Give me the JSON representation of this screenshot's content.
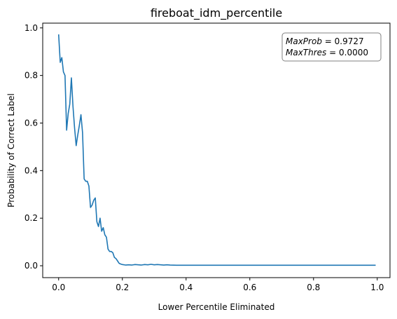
{
  "chart_data": {
    "type": "line",
    "title": "fireboat_idm_percentile",
    "xlabel": "Lower Percentile Eliminated",
    "ylabel": "Probability of Correct Label",
    "xlim": [
      -0.05,
      1.04
    ],
    "ylim": [
      -0.05,
      1.02
    ],
    "xticks": [
      0.0,
      0.2,
      0.4,
      0.6,
      0.8,
      1.0
    ],
    "xtick_labels": [
      "0.0",
      "0.2",
      "0.4",
      "0.6",
      "0.8",
      "1.0"
    ],
    "yticks": [
      0.0,
      0.2,
      0.4,
      0.6,
      0.8,
      1.0
    ],
    "ytick_labels": [
      "0.0",
      "0.2",
      "0.4",
      "0.6",
      "0.8",
      "1.0"
    ],
    "grid": false,
    "line_color": "#1f77b4",
    "annotation": {
      "line1_label": "MaxProb",
      "line1_eq": " = 0.9727",
      "line2_label": "MaxThres",
      "line2_eq": " = 0.0000"
    },
    "series": [
      {
        "x": [
          0.0,
          0.005,
          0.01,
          0.015,
          0.02,
          0.025,
          0.03,
          0.035,
          0.04,
          0.045,
          0.05,
          0.055,
          0.06,
          0.065,
          0.07,
          0.075,
          0.08,
          0.085,
          0.09,
          0.095,
          0.1,
          0.105,
          0.11,
          0.115,
          0.12,
          0.125,
          0.13,
          0.135,
          0.14,
          0.145,
          0.15,
          0.155,
          0.16,
          0.165,
          0.17,
          0.175,
          0.18,
          0.185,
          0.19,
          0.195,
          0.2,
          0.21,
          0.22,
          0.23,
          0.24,
          0.25,
          0.26,
          0.27,
          0.28,
          0.29,
          0.3,
          0.31,
          0.32,
          0.33,
          0.34,
          0.35,
          0.37,
          0.39,
          0.4,
          0.45,
          0.5,
          0.55,
          0.6,
          0.65,
          0.7,
          0.75,
          0.8,
          0.85,
          0.9,
          0.95,
          0.995
        ],
        "y": [
          0.9727,
          0.855,
          0.875,
          0.815,
          0.8,
          0.57,
          0.64,
          0.68,
          0.79,
          0.67,
          0.58,
          0.505,
          0.55,
          0.59,
          0.635,
          0.56,
          0.365,
          0.355,
          0.355,
          0.335,
          0.245,
          0.255,
          0.275,
          0.285,
          0.185,
          0.165,
          0.2,
          0.145,
          0.16,
          0.13,
          0.12,
          0.07,
          0.06,
          0.06,
          0.055,
          0.035,
          0.03,
          0.02,
          0.01,
          0.007,
          0.005,
          0.003,
          0.004,
          0.003,
          0.005,
          0.004,
          0.003,
          0.005,
          0.004,
          0.006,
          0.004,
          0.005,
          0.004,
          0.003,
          0.004,
          0.003,
          0.002,
          0.002,
          0.002,
          0.002,
          0.002,
          0.002,
          0.002,
          0.002,
          0.002,
          0.002,
          0.002,
          0.002,
          0.002,
          0.002,
          0.002
        ]
      }
    ]
  }
}
